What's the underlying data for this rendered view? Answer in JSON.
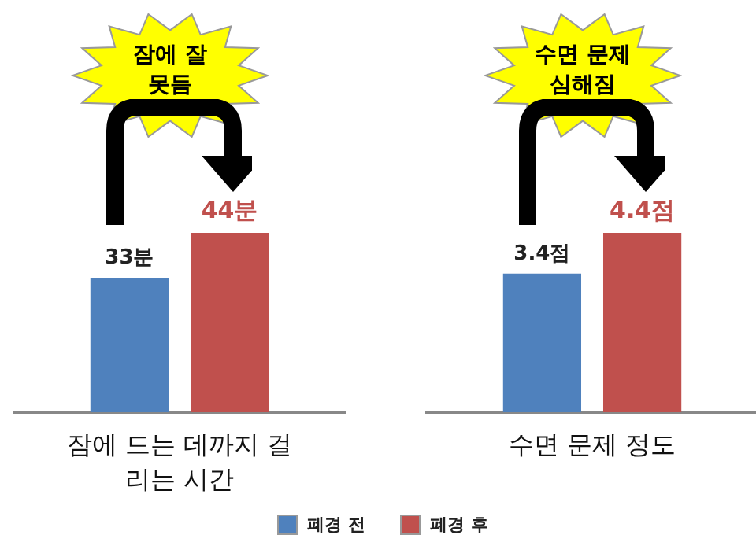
{
  "chart_data": [
    {
      "type": "bar",
      "xlabel": "잠에 드는 데까지 걸리는 시간",
      "categories": [
        null
      ],
      "legend": "bottom",
      "annotations": [
        "잠에 잘 못듬"
      ],
      "series": [
        {
          "name": "폐경 전",
          "color": "#4f81bd",
          "values": [
            33
          ],
          "value_labels": [
            "33분"
          ]
        },
        {
          "name": "폐경 후",
          "color": "#c0504d",
          "values": [
            44
          ],
          "value_labels": [
            "44분"
          ]
        }
      ]
    },
    {
      "type": "bar",
      "xlabel": "수면 문제 정도",
      "categories": [
        null
      ],
      "annotations": [
        "수면 문제 심해짐"
      ],
      "series": [
        {
          "color": "#4f81bd",
          "values": [
            3.4
          ],
          "value_labels": [
            "3.4점"
          ]
        },
        {
          "color": "#c0504d",
          "values": [
            4.4
          ],
          "value_labels": [
            "4.4점"
          ]
        }
      ]
    }
  ]
}
